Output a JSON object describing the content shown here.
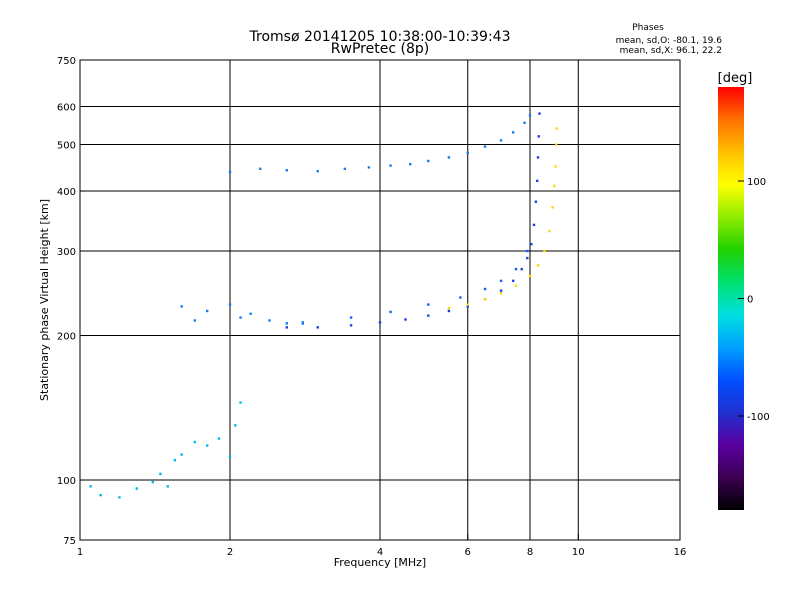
{
  "chart_data": {
    "type": "scatter",
    "title": "Tromsø 20141205 10:38:00-10:39:43",
    "subtitle": "RwPretec (8p)",
    "xlabel": "Frequency [MHz]",
    "ylabel": "Stationary phase Virtual Height [km]",
    "xscale": "log",
    "yscale": "log",
    "xlim": [
      1,
      16
    ],
    "ylim": [
      75,
      750
    ],
    "xticks": [
      1,
      2,
      4,
      6,
      8,
      10,
      16
    ],
    "yticks": [
      75,
      100,
      200,
      300,
      400,
      500,
      600,
      750
    ],
    "grid": true,
    "phase_stats": {
      "heading": "Phases",
      "line1": "mean, sd,O: -80.1, 19.6",
      "line2": "mean, sd,X:  96.1, 22.2"
    },
    "colorbar": {
      "label": "[deg]",
      "range": [
        -180,
        180
      ],
      "ticks": [
        100,
        0,
        -100
      ],
      "colors": [
        "#000000",
        "#3b0052",
        "#5a00a0",
        "#2030d0",
        "#0050ff",
        "#00a0ff",
        "#00e0e0",
        "#00e070",
        "#20d000",
        "#90ec00",
        "#ffff00",
        "#ffc000",
        "#ff7000",
        "#ff0000"
      ]
    },
    "series": [
      {
        "color": "#2040e0",
        "points": [
          [
            2.6,
            208
          ],
          [
            3.0,
            208
          ],
          [
            3.5,
            210
          ],
          [
            4.0,
            213
          ],
          [
            4.5,
            216
          ],
          [
            5.0,
            220
          ],
          [
            5.5,
            225
          ],
          [
            6.0,
            230
          ],
          [
            6.5,
            238
          ],
          [
            7.0,
            248
          ],
          [
            7.4,
            260
          ],
          [
            7.7,
            275
          ],
          [
            7.9,
            290
          ],
          [
            8.05,
            310
          ],
          [
            8.15,
            340
          ],
          [
            8.22,
            380
          ],
          [
            8.27,
            420
          ],
          [
            8.3,
            470
          ],
          [
            8.33,
            520
          ],
          [
            8.36,
            580
          ]
        ]
      },
      {
        "color": "#1060ff",
        "points": [
          [
            2.8,
            212
          ],
          [
            3.5,
            218
          ],
          [
            4.2,
            224
          ],
          [
            5.0,
            232
          ],
          [
            5.8,
            240
          ],
          [
            6.5,
            250
          ],
          [
            7.0,
            260
          ],
          [
            7.5,
            275
          ],
          [
            7.9,
            300
          ]
        ]
      },
      {
        "color": "#ffd800",
        "points": [
          [
            5.5,
            228
          ],
          [
            6.0,
            232
          ],
          [
            6.5,
            238
          ],
          [
            7.0,
            245
          ],
          [
            7.5,
            254
          ],
          [
            8.0,
            266
          ],
          [
            8.3,
            280
          ],
          [
            8.55,
            300
          ],
          [
            8.75,
            330
          ],
          [
            8.88,
            370
          ],
          [
            8.95,
            410
          ],
          [
            9.0,
            450
          ],
          [
            9.03,
            500
          ],
          [
            9.05,
            540
          ]
        ]
      },
      {
        "color": "#1080f0",
        "points": [
          [
            1.6,
            230
          ],
          [
            1.7,
            215
          ],
          [
            1.8,
            225
          ],
          [
            2.0,
            232
          ],
          [
            2.1,
            218
          ],
          [
            2.2,
            222
          ],
          [
            2.4,
            215
          ],
          [
            2.6,
            212
          ],
          [
            2.8,
            213
          ]
        ]
      },
      {
        "color": "#1080f0",
        "points": [
          [
            2.0,
            438
          ],
          [
            2.3,
            445
          ],
          [
            2.6,
            442
          ],
          [
            3.0,
            440
          ],
          [
            3.4,
            445
          ],
          [
            3.8,
            448
          ],
          [
            4.2,
            452
          ],
          [
            4.6,
            455
          ],
          [
            5.0,
            462
          ],
          [
            5.5,
            470
          ],
          [
            6.0,
            480
          ],
          [
            6.5,
            495
          ],
          [
            7.0,
            510
          ],
          [
            7.4,
            530
          ],
          [
            7.8,
            555
          ],
          [
            8.0,
            575
          ]
        ]
      },
      {
        "color": "#00b8f0",
        "points": [
          [
            1.05,
            97
          ],
          [
            1.1,
            93
          ],
          [
            1.2,
            92
          ],
          [
            1.3,
            96
          ],
          [
            1.4,
            99
          ],
          [
            1.45,
            103
          ],
          [
            1.5,
            97
          ],
          [
            1.55,
            110
          ],
          [
            1.6,
            113
          ],
          [
            1.7,
            120
          ],
          [
            1.8,
            118
          ],
          [
            1.9,
            122
          ],
          [
            2.0,
            112
          ],
          [
            2.05,
            130
          ],
          [
            2.1,
            145
          ]
        ]
      }
    ]
  }
}
